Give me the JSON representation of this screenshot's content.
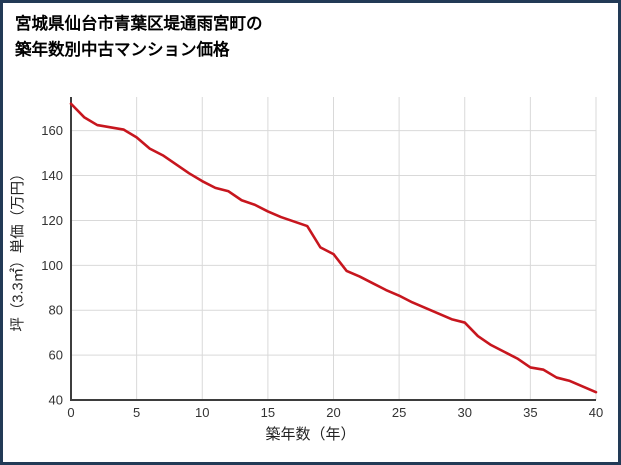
{
  "page": {
    "frame_color": "#223a56",
    "background": "#ffffff"
  },
  "header": {
    "title_line1": "宮城県仙台市青葉区堤通雨宮町の",
    "title_line2": "築年数別中古マンション価格"
  },
  "chart_data": {
    "type": "line",
    "title": "宮城県仙台市青葉区堤通雨宮町の築年数別中古マンション価格",
    "xlabel": "築年数（年）",
    "ylabel": "坪（3.3㎡）単価（万円）",
    "x": [
      0,
      1,
      2,
      3,
      4,
      5,
      6,
      7,
      8,
      9,
      10,
      11,
      12,
      13,
      14,
      15,
      16,
      17,
      18,
      19,
      20,
      21,
      22,
      23,
      24,
      25,
      26,
      27,
      28,
      29,
      30,
      31,
      32,
      33,
      34,
      35,
      36,
      37,
      38,
      39,
      40
    ],
    "values": [
      172,
      166,
      162.5,
      161.5,
      160.5,
      157,
      152,
      149,
      145,
      141,
      137.5,
      134.5,
      133,
      129,
      127,
      124,
      121.5,
      119.5,
      117.5,
      108,
      105,
      97.5,
      95,
      92,
      89,
      86.5,
      83.5,
      81,
      78.5,
      76,
      74.5,
      68.5,
      64.5,
      61.5,
      58.5,
      54.5,
      53.5,
      50,
      48.5,
      46,
      43.5
    ],
    "xlim": [
      0,
      40
    ],
    "ylim": [
      40,
      175
    ],
    "xticks": [
      0,
      5,
      10,
      15,
      20,
      25,
      30,
      35,
      40
    ],
    "yticks": [
      40,
      60,
      80,
      100,
      120,
      140,
      160
    ],
    "grid": true,
    "legend": "none",
    "line_color": "#c7161e",
    "grid_color": "#d9d9d9",
    "axis_color": "#3d3d3d",
    "tick_label_color": "#333333"
  }
}
